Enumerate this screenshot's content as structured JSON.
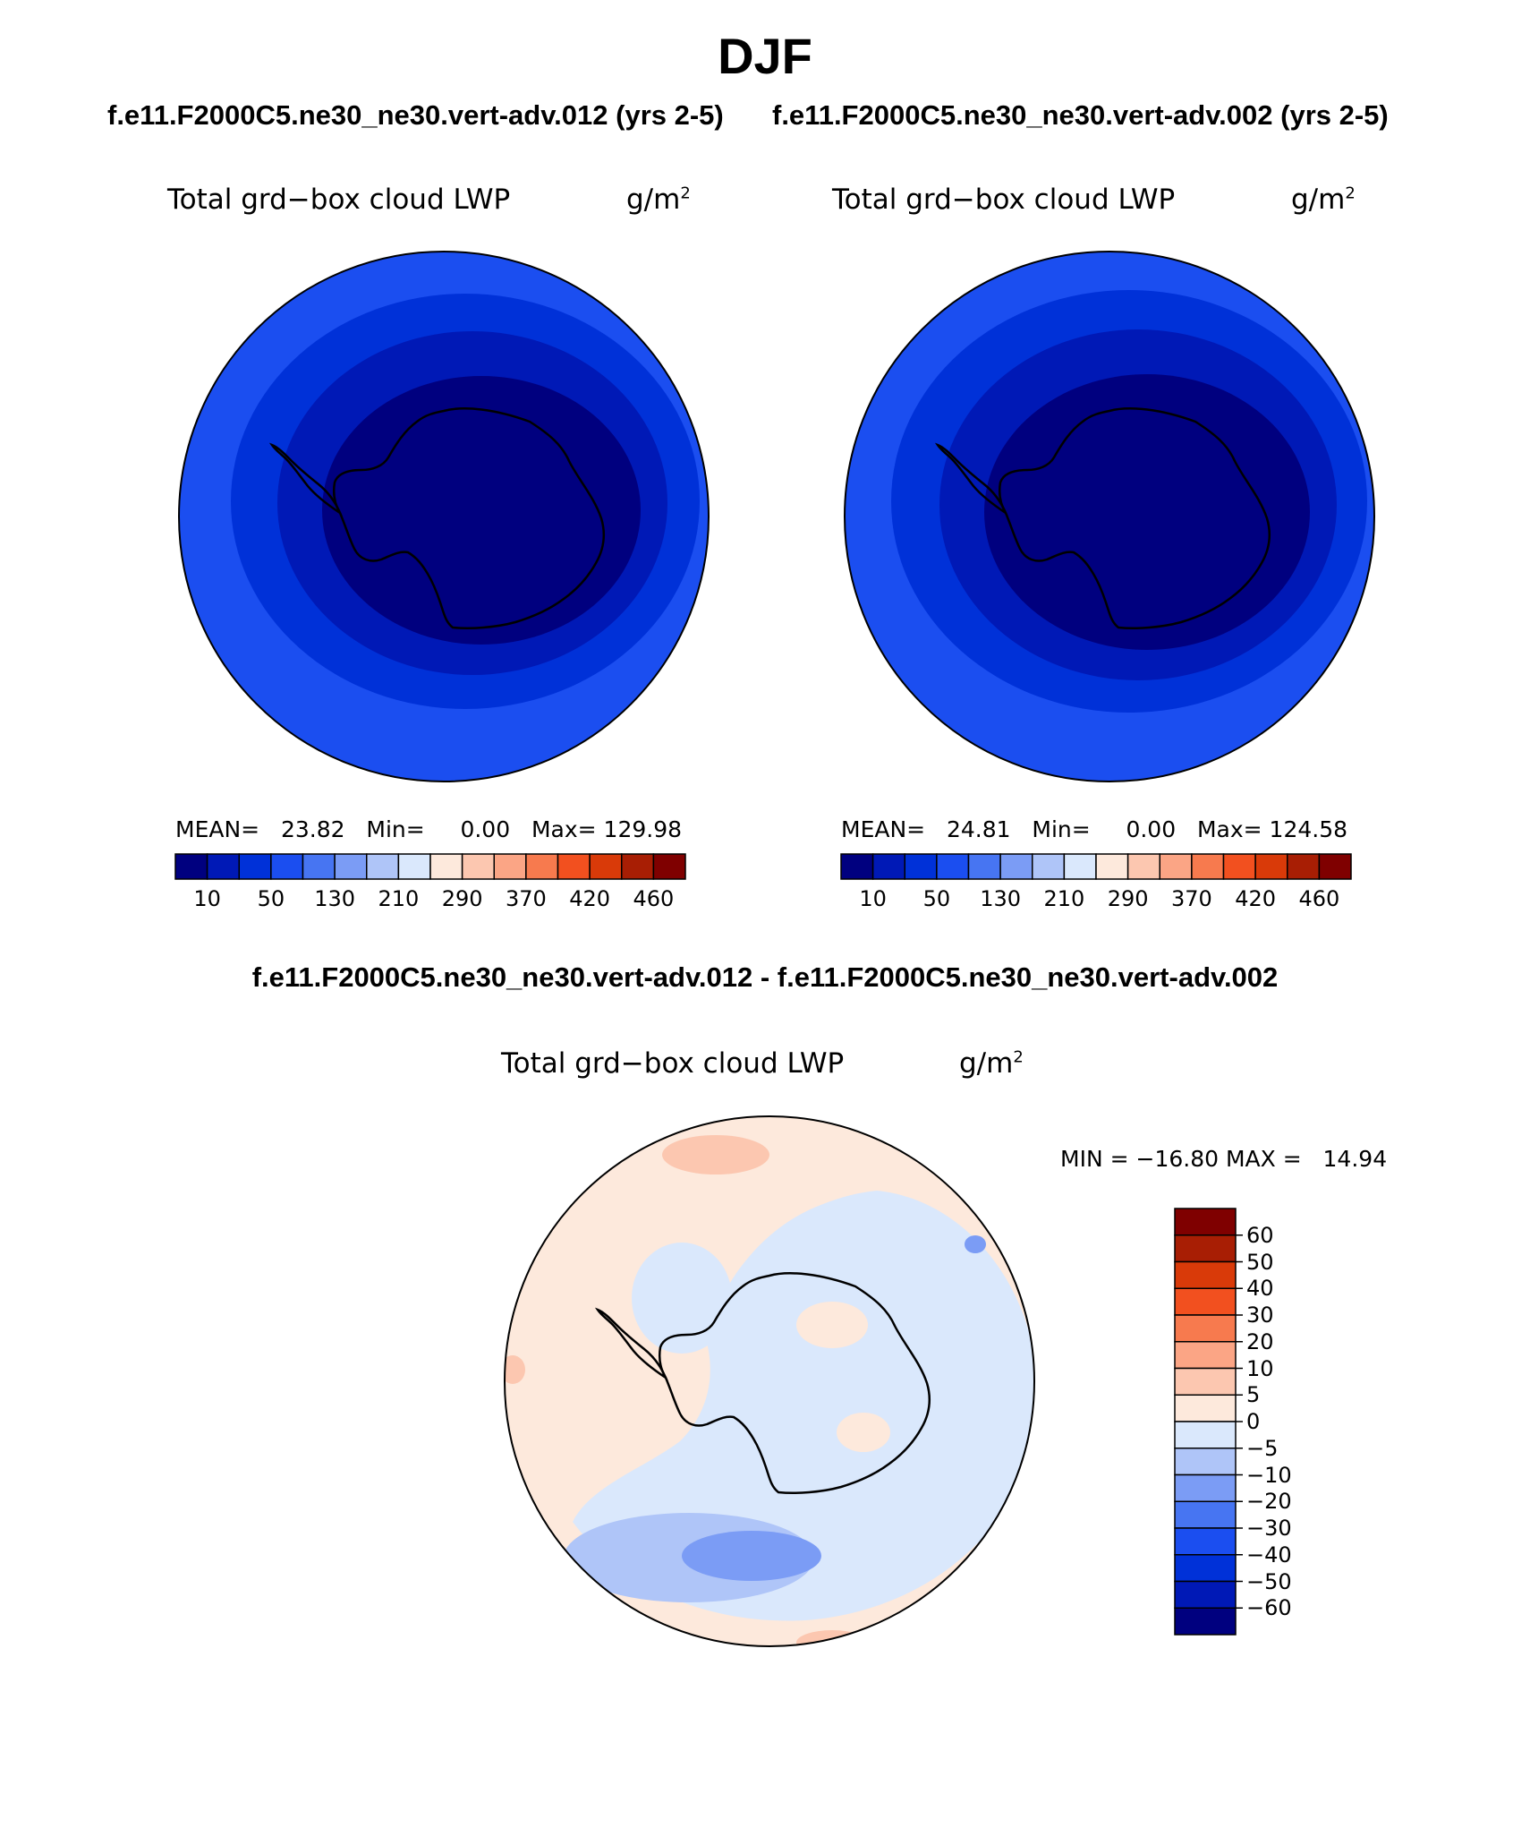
{
  "header": {
    "season": "DJF",
    "case_left": "f.e11.F2000C5.ne30_ne30.vert-adv.012 (yrs 2-5)",
    "case_right": "f.e11.F2000C5.ne30_ne30.vert-adv.002 (yrs 2-5)",
    "diff_title": "f.e11.F2000C5.ne30_ne30.vert-adv.012 - f.e11.F2000C5.ne30_ne30.vert-adv.002"
  },
  "panels": [
    {
      "variable": "Total grd−box cloud LWP",
      "units_base": "g/m",
      "units_exp": "2",
      "mean_label": "MEAN=",
      "mean_value": "23.82",
      "min_label": "Min=",
      "min_value": "0.00",
      "max_label": "Max=",
      "max_value": "129.98"
    },
    {
      "variable": "Total grd−box cloud LWP",
      "units_base": "g/m",
      "units_exp": "2",
      "mean_label": "MEAN=",
      "mean_value": "24.81",
      "min_label": "Min=",
      "min_value": "0.00",
      "max_label": "Max=",
      "max_value": "124.58"
    }
  ],
  "diff_panel": {
    "variable": "Total grd−box cloud LWP",
    "units_base": "g/m",
    "units_exp": "2",
    "min_label": "MIN =",
    "min_value": "−16.80",
    "max_label": "MAX =",
    "max_value": "14.94"
  },
  "colorbar_field": {
    "colors": [
      "#00007f",
      "#0019b6",
      "#0031d8",
      "#1b4ef0",
      "#4775f2",
      "#7b9cf5",
      "#afc5f8",
      "#dae8fc",
      "#fde9dc",
      "#fcc7b0",
      "#fba585",
      "#f77a4e",
      "#f2501f",
      "#d93a09",
      "#a81e04",
      "#7f0000"
    ],
    "labels": [
      "10",
      "50",
      "130",
      "210",
      "290",
      "370",
      "420",
      "460"
    ]
  },
  "colorbar_diff": {
    "colors": [
      "#7f0000",
      "#a81e04",
      "#d93a09",
      "#f2501f",
      "#f77a4e",
      "#fba585",
      "#fcc7b0",
      "#fde9dc",
      "#dae8fc",
      "#afc5f8",
      "#7b9cf5",
      "#4775f2",
      "#1b4ef0",
      "#0031d8",
      "#0019b6",
      "#00007f"
    ],
    "labels": [
      "60",
      "50",
      "40",
      "30",
      "20",
      "10",
      "5",
      "0",
      "−5",
      "−10",
      "−20",
      "−30",
      "−40",
      "−50",
      "−60"
    ]
  },
  "palette": {
    "field_outer": "#1b4ef0",
    "field_mid": "#0031d8",
    "field_inner": "#0019b6",
    "field_core": "#00007f",
    "diff_pos": "#fde9dc",
    "diff_pos_strong": "#fcc7b0",
    "diff_neg": "#dae8fc",
    "diff_neg_mid": "#afc5f8",
    "diff_neg_strong": "#7b9cf5",
    "coast": "#000000"
  }
}
